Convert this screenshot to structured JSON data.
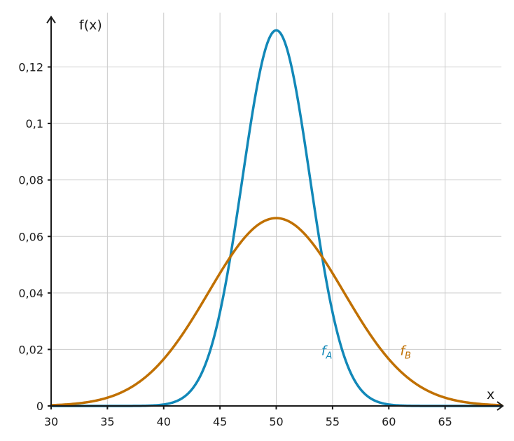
{
  "chart_data": {
    "type": "line",
    "xlabel": "x",
    "ylabel": "f(x)",
    "xlim": [
      30,
      70
    ],
    "ylim": [
      0,
      0.1375
    ],
    "x_ticks": [
      30,
      35,
      40,
      45,
      50,
      55,
      60,
      65
    ],
    "x_tick_labels": [
      "30",
      "35",
      "40",
      "45",
      "50",
      "55",
      "60",
      "65"
    ],
    "y_ticks": [
      0,
      0.02,
      0.04,
      0.06,
      0.08,
      0.1,
      0.12
    ],
    "y_tick_labels": [
      "0",
      "0,02",
      "0,04",
      "0,06",
      "0,08",
      "0,1",
      "0,12"
    ],
    "grid": true,
    "series": [
      {
        "name": "f_A",
        "label_main": "f",
        "label_sub": "A",
        "label_at": [
          54,
          0.018
        ],
        "color": "#1288b8",
        "mean": 50,
        "std": 3,
        "x": [
          30,
          40,
          42,
          44,
          45,
          46,
          47,
          48,
          49,
          50,
          51,
          52,
          53,
          54,
          55,
          56,
          58,
          60,
          70
        ],
        "y": [
          0,
          0.0005,
          0.0038,
          0.018,
          0.0332,
          0.0547,
          0.0807,
          0.1065,
          0.1258,
          0.133,
          0.1258,
          0.1065,
          0.0807,
          0.0547,
          0.0332,
          0.018,
          0.0038,
          0.0005,
          0
        ]
      },
      {
        "name": "f_B",
        "label_main": "f",
        "label_sub": "B",
        "label_at": [
          61,
          0.018
        ],
        "color": "#c07000",
        "mean": 50,
        "std": 6,
        "x": [
          30,
          35,
          40,
          45,
          50,
          55,
          60,
          65,
          70
        ],
        "y": [
          0.0003,
          0.0029,
          0.0166,
          0.0471,
          0.0665,
          0.0471,
          0.0166,
          0.0029,
          0.0003
        ]
      }
    ]
  }
}
